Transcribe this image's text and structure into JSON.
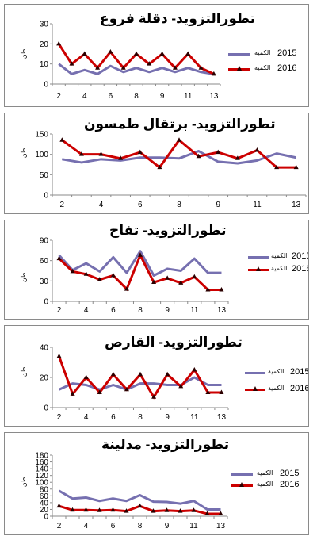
{
  "legend_label": "الكمية",
  "colors": {
    "s2015": "#7670b0",
    "s2016": "#cc0000",
    "marker": "#2b0000",
    "axis": "#8a8a8a"
  },
  "charts": [
    {
      "title": "تطورالتزويد- دقلة فروع",
      "ylabel": "طن",
      "chart_data": {
        "type": "line",
        "title": "تطورالتزويد- دقلة فروع",
        "ylabel": "طن",
        "x": [
          2,
          3,
          4,
          5,
          6,
          7,
          8,
          9,
          10,
          11,
          12,
          13,
          14
        ],
        "xtick_labels": [
          "2",
          "4",
          "6",
          "8",
          "9",
          "11",
          "13"
        ],
        "ylim": [
          0,
          30
        ],
        "yticks": [
          "0",
          "10",
          "20",
          "30"
        ],
        "series": [
          {
            "name": "2015",
            "values": [
              10,
              5,
              7,
              5,
              9,
              6,
              8,
              6,
              8,
              6,
              8,
              6,
              5
            ]
          },
          {
            "name": "2016",
            "values": [
              20,
              10,
              15,
              8,
              16,
              8,
              15,
              10,
              15,
              8,
              15,
              8,
              5
            ]
          }
        ]
      }
    },
    {
      "title": "تطورالتزويد- برتقال طمسون",
      "ylabel": "طن",
      "chart_data": {
        "type": "line",
        "title": "تطورالتزويد- برتقال طمسون",
        "ylabel": "طن",
        "x": [
          2,
          3,
          4,
          5,
          6,
          7,
          8,
          9,
          10,
          11,
          12,
          13,
          14
        ],
        "xtick_labels": [
          "2",
          "4",
          "6",
          "8",
          "9",
          "11",
          "13"
        ],
        "ylim": [
          0,
          150
        ],
        "yticks": [
          "0",
          "50",
          "100",
          "150"
        ],
        "series": [
          {
            "name": "2015",
            "values": [
              88,
              80,
              88,
              85,
              92,
              92,
              90,
              108,
              82,
              78,
              85,
              102,
              92
            ]
          },
          {
            "name": "2016",
            "values": [
              135,
              100,
              100,
              90,
              105,
              68,
              135,
              95,
              105,
              90,
              110,
              68,
              68
            ]
          }
        ]
      }
    },
    {
      "title": "تطورالتزويد- تفاح",
      "ylabel": "طن",
      "chart_data": {
        "type": "line",
        "title": "تطورالتزويد- تفاح",
        "ylabel": "طن",
        "x": [
          2,
          3,
          4,
          5,
          6,
          7,
          8,
          9,
          10,
          11,
          12,
          13,
          14
        ],
        "xtick_labels": [
          "2",
          "4",
          "6",
          "8",
          "9",
          "11",
          "13"
        ],
        "ylim": [
          0,
          90
        ],
        "yticks": [
          "0",
          "30",
          "60",
          "90"
        ],
        "series": [
          {
            "name": "2015",
            "values": [
              68,
              46,
              56,
              44,
              65,
              42,
              74,
              38,
              48,
              45,
              63,
              42,
              42
            ]
          },
          {
            "name": "2016",
            "values": [
              63,
              44,
              40,
              32,
              38,
              18,
              68,
              28,
              34,
              27,
              36,
              17,
              17
            ]
          }
        ]
      }
    },
    {
      "title": "تطورالتزويد- القارص",
      "ylabel": "طن",
      "chart_data": {
        "type": "line",
        "title": "تطورالتزويد- القارص",
        "ylabel": "طن",
        "x": [
          2,
          3,
          4,
          5,
          6,
          7,
          8,
          9,
          10,
          11,
          12,
          13,
          14
        ],
        "xtick_labels": [
          "2",
          "4",
          "6",
          "8",
          "9",
          "11",
          "13"
        ],
        "ylim": [
          0,
          40
        ],
        "yticks": [
          "0",
          "20",
          "40"
        ],
        "series": [
          {
            "name": "2015",
            "values": [
              12,
              16,
              15,
              12,
              15,
              12,
              16,
              16,
              15,
              15,
              20,
              15,
              15
            ]
          },
          {
            "name": "2016",
            "values": [
              34,
              9,
              20,
              10,
              22,
              12,
              22,
              7,
              22,
              14,
              25,
              10,
              10
            ]
          }
        ]
      }
    },
    {
      "title": "تطورالتزويد- مدلينة",
      "ylabel": "طن",
      "chart_data": {
        "type": "line",
        "title": "تطورالتزويد- مدلينة",
        "ylabel": "طن",
        "x": [
          2,
          3,
          4,
          5,
          6,
          7,
          8,
          9,
          10,
          11,
          12,
          13,
          14
        ],
        "xtick_labels": [
          "2",
          "4",
          "6",
          "8",
          "9",
          "11",
          "13"
        ],
        "ylim": [
          0,
          180
        ],
        "yticks": [
          "0",
          "20",
          "40",
          "60",
          "80",
          "100",
          "120",
          "140",
          "160",
          "180"
        ],
        "series": [
          {
            "name": "2015",
            "values": [
              75,
              52,
              55,
              45,
              52,
              45,
              62,
              43,
              42,
              37,
              45,
              20,
              20
            ]
          },
          {
            "name": "2016",
            "values": [
              30,
              18,
              18,
              17,
              18,
              15,
              30,
              15,
              17,
              15,
              17,
              7,
              7
            ]
          }
        ]
      }
    }
  ]
}
